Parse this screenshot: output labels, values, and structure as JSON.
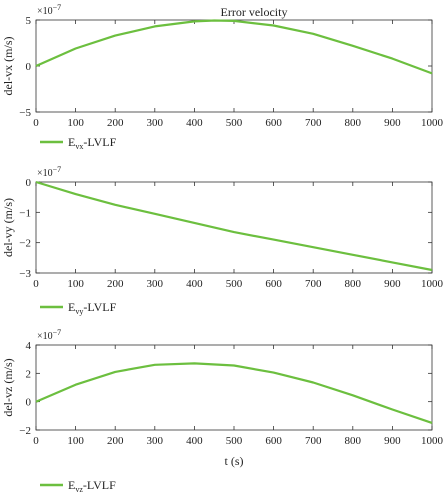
{
  "figure_title": "Error velocity",
  "xlabel": "t (s)",
  "legend_prefix": "E",
  "legend_suffix": "-LVLF",
  "line_color": "#6cbf3f",
  "chart_data": [
    {
      "type": "line",
      "title": "Error velocity",
      "ylabel": "del-vx (m/s)",
      "exponent_base": "×10",
      "exponent_power": "−7",
      "xlim": [
        0,
        1000
      ],
      "ylim": [
        -5,
        5
      ],
      "x_ticks": [
        "0",
        "100",
        "200",
        "300",
        "400",
        "500",
        "600",
        "700",
        "800",
        "900",
        "1000"
      ],
      "y_ticks": [
        "5",
        "0",
        "−5"
      ],
      "y_tick_values": [
        5,
        0,
        -5
      ],
      "legend": {
        "subscript": "vx"
      },
      "series": [
        {
          "x": [
            0,
            100,
            200,
            300,
            400,
            450,
            500,
            600,
            700,
            800,
            900,
            1000
          ],
          "y": [
            0,
            1.9,
            3.3,
            4.3,
            4.85,
            4.95,
            4.9,
            4.4,
            3.5,
            2.2,
            0.8,
            -0.8
          ]
        }
      ]
    },
    {
      "type": "line",
      "title": "",
      "ylabel": "del-vy (m/s)",
      "exponent_base": "×10",
      "exponent_power": "−7",
      "xlim": [
        0,
        1000
      ],
      "ylim": [
        -3,
        0
      ],
      "x_ticks": [
        "0",
        "100",
        "200",
        "300",
        "400",
        "500",
        "600",
        "700",
        "800",
        "900",
        "1000"
      ],
      "y_ticks": [
        "0",
        "−1",
        "−2",
        "−3"
      ],
      "y_tick_values": [
        0,
        -1,
        -2,
        -3
      ],
      "legend": {
        "subscript": "vy"
      },
      "series": [
        {
          "x": [
            0,
            100,
            200,
            300,
            400,
            500,
            600,
            700,
            800,
            900,
            1000
          ],
          "y": [
            0,
            -0.4,
            -0.75,
            -1.05,
            -1.35,
            -1.65,
            -1.9,
            -2.15,
            -2.4,
            -2.65,
            -2.9
          ]
        }
      ]
    },
    {
      "type": "line",
      "title": "",
      "ylabel": "del-vz (m/s)",
      "exponent_base": "×10",
      "exponent_power": "−7",
      "xlim": [
        0,
        1000
      ],
      "ylim": [
        -2,
        4
      ],
      "x_ticks": [
        "0",
        "100",
        "200",
        "300",
        "400",
        "500",
        "600",
        "700",
        "800",
        "900",
        "1000"
      ],
      "y_ticks": [
        "4",
        "2",
        "0",
        "−2"
      ],
      "y_tick_values": [
        4,
        2,
        0,
        -2
      ],
      "legend": {
        "subscript": "vz"
      },
      "series": [
        {
          "x": [
            0,
            100,
            200,
            300,
            400,
            500,
            600,
            700,
            800,
            900,
            1000
          ],
          "y": [
            0,
            1.2,
            2.1,
            2.6,
            2.7,
            2.55,
            2.05,
            1.35,
            0.45,
            -0.55,
            -1.5
          ]
        }
      ]
    }
  ]
}
